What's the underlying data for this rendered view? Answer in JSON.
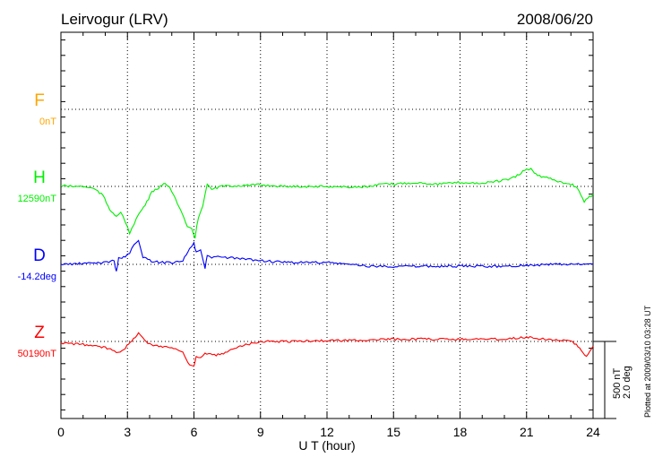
{
  "chart_data": {
    "type": "line",
    "title": "Leirvogur (LRV)",
    "date": "2008/06/20",
    "xlabel": "U T (hour)",
    "xlim": [
      0,
      24
    ],
    "xticks": [
      "0",
      "3",
      "6",
      "9",
      "12",
      "15",
      "18",
      "21",
      "24"
    ],
    "scale_label_nT": "500 nT",
    "scale_label_deg": "2.0 deg",
    "scale_nT": 500,
    "scale_deg": 2.0,
    "footer": "Plotted at 2009/03/10 03:28 UT",
    "series": [
      {
        "name": "F",
        "baseline_label": "0nT",
        "color": "#ffa500",
        "unit": "nT",
        "x": [],
        "y": []
      },
      {
        "name": "H",
        "baseline_label": "12590nT",
        "color": "#00ee00",
        "unit": "nT",
        "x": [
          0,
          0.5,
          1,
          1.5,
          1.9,
          2.2,
          2.5,
          2.7,
          2.9,
          3.1,
          3.3,
          3.5,
          3.8,
          4.1,
          4.4,
          4.7,
          4.9,
          5.1,
          5.4,
          5.7,
          5.9,
          6.05,
          6.2,
          6.4,
          6.6,
          6.8,
          7.2,
          8,
          9,
          10,
          11,
          12,
          13,
          14,
          14.5,
          15,
          15.5,
          16,
          17,
          18,
          19,
          20,
          20.5,
          21,
          21.2,
          21.5,
          22,
          22.5,
          23,
          23.3,
          23.6,
          24
        ],
        "y": [
          5,
          0,
          0,
          -15,
          -60,
          -150,
          -190,
          -170,
          -230,
          -300,
          -250,
          -180,
          -120,
          -40,
          -10,
          20,
          0,
          -60,
          -160,
          -260,
          -280,
          -330,
          -200,
          -120,
          10,
          -20,
          0,
          5,
          10,
          0,
          0,
          0,
          -5,
          0,
          15,
          15,
          20,
          25,
          15,
          25,
          20,
          40,
          60,
          115,
          110,
          70,
          55,
          30,
          15,
          -10,
          -100,
          -50
        ]
      },
      {
        "name": "D",
        "baseline_label": "-14.2deg",
        "color": "#0000ff",
        "unit": "deg",
        "x": [
          0,
          1,
          2,
          2.4,
          2.5,
          2.6,
          2.9,
          3.1,
          3.3,
          3.5,
          3.7,
          4,
          4.5,
          5,
          5.5,
          5.8,
          6,
          6.1,
          6.3,
          6.5,
          6.6,
          6.8,
          7,
          8,
          9,
          10,
          11,
          12,
          13,
          14,
          15,
          16,
          17,
          18,
          19,
          20,
          21,
          21.5,
          22,
          23,
          24
        ],
        "y": [
          0,
          0.02,
          0.05,
          0.1,
          -0.2,
          0.15,
          0.2,
          0.3,
          0.5,
          0.6,
          0.2,
          0.1,
          0.05,
          0.05,
          0.1,
          0.4,
          0.55,
          0.3,
          0.35,
          -0.1,
          0.25,
          0.15,
          0.2,
          0.15,
          0.1,
          0.05,
          0.05,
          0.05,
          0,
          -0.05,
          -0.05,
          -0.05,
          -0.05,
          -0.05,
          -0.05,
          -0.05,
          -0.02,
          -0.02,
          0,
          0,
          0
        ]
      },
      {
        "name": "Z",
        "baseline_label": "50190nT",
        "color": "#ff0000",
        "unit": "nT",
        "x": [
          0,
          1,
          1.5,
          2,
          2.4,
          2.6,
          2.9,
          3.2,
          3.5,
          3.7,
          4,
          4.5,
          5,
          5.5,
          5.8,
          6,
          6.1,
          6.3,
          6.5,
          7,
          7.5,
          8,
          9,
          10,
          12,
          14,
          15,
          16,
          18,
          20,
          21,
          21.3,
          22,
          23,
          23.4,
          23.7,
          24
        ],
        "y": [
          -10,
          -20,
          -30,
          -40,
          -60,
          -70,
          -40,
          0,
          60,
          20,
          -20,
          -30,
          -40,
          -70,
          -150,
          -160,
          -100,
          -110,
          -80,
          -90,
          -70,
          -30,
          0,
          0,
          5,
          10,
          15,
          15,
          15,
          15,
          30,
          20,
          15,
          0,
          -40,
          -100,
          -30
        ]
      }
    ]
  }
}
